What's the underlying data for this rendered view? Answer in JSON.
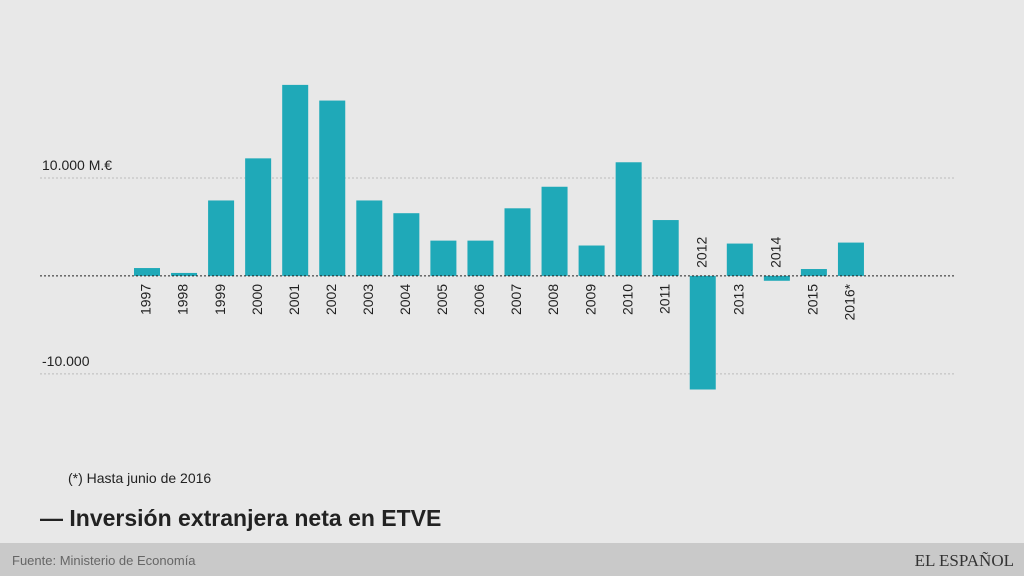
{
  "chart_data": {
    "type": "bar",
    "title": "— Inversión extranjera neta en ETVE",
    "note": "(*) Hasta junio de 2016",
    "source": "Fuente: Ministerio de Economía",
    "brand": "EL ESPAÑOL",
    "categories": [
      "1997",
      "1998",
      "1999",
      "2000",
      "2001",
      "2002",
      "2003",
      "2004",
      "2005",
      "2006",
      "2007",
      "2008",
      "2009",
      "2010",
      "2011",
      "2012",
      "2013",
      "2014",
      "2015",
      "2016*"
    ],
    "values": [
      800,
      300,
      7700,
      12000,
      19500,
      17900,
      7700,
      6400,
      3600,
      3600,
      6900,
      9100,
      3100,
      11600,
      5700,
      -11600,
      3300,
      -500,
      700,
      3400
    ],
    "color": "#1fa9b8",
    "ylim": [
      -14000,
      20000
    ],
    "yticks": [
      {
        "value": -10000,
        "label": "-10.000"
      },
      {
        "value": 10000,
        "label": "10.000 M.€"
      }
    ],
    "grid": true
  }
}
